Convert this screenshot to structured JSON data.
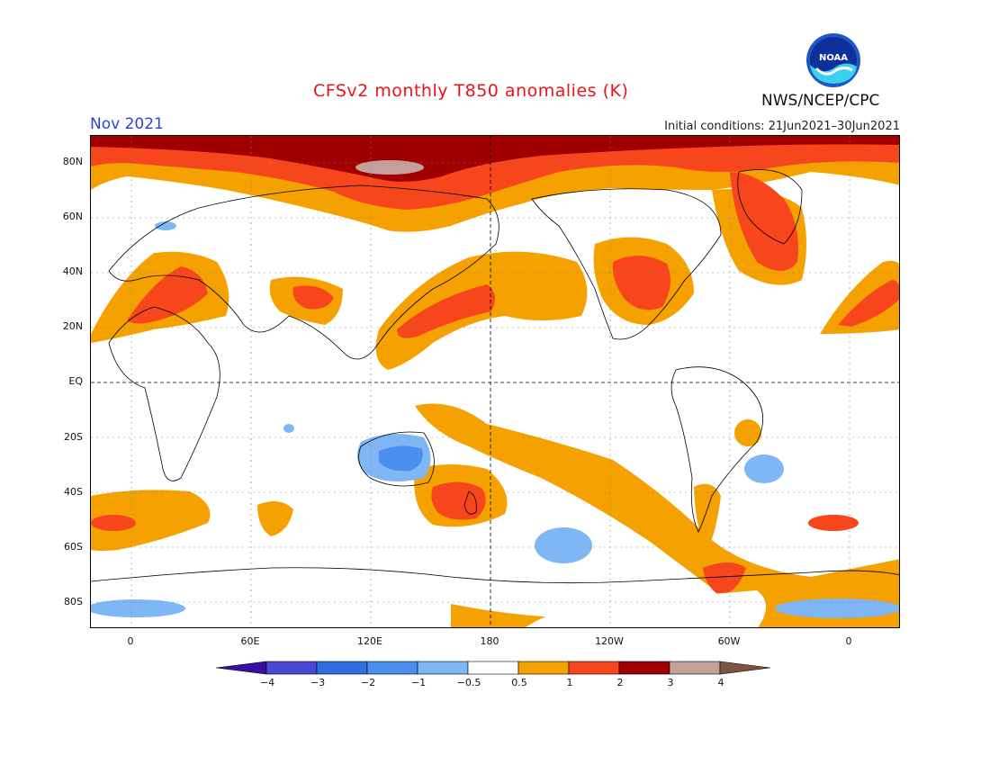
{
  "header": {
    "title": "CFSv2 monthly T850 anomalies (K)",
    "month": "Nov 2021",
    "initial_conditions": "Initial conditions: 21Jun2021–30Jun2021",
    "agency": "NWS/NCEP/CPC",
    "logo_text": "NOAA"
  },
  "axes": {
    "y_labels": [
      "80N",
      "60N",
      "40N",
      "20N",
      "EQ",
      "20S",
      "40S",
      "60S",
      "80S"
    ],
    "x_labels": [
      "0",
      "60E",
      "120E",
      "180",
      "120W",
      "60W",
      "0"
    ]
  },
  "colorbar": {
    "labels": [
      "−4",
      "−3",
      "−2",
      "−1",
      "−0.5",
      "0.5",
      "1",
      "2",
      "3",
      "4"
    ],
    "colors": [
      "#3a0ea0",
      "#4a46d6",
      "#2e6ee0",
      "#4a8ff0",
      "#7fb6f6",
      "#ffffff",
      "#f5a100",
      "#f8461c",
      "#a00000",
      "#c4a09a",
      "#7a5540"
    ]
  },
  "colors": {
    "title": "#e8141a",
    "month": "#2a44d6",
    "warm_0_5_1": "#f5a100",
    "warm_1_2": "#f8461c",
    "warm_2_3": "#a00000",
    "warm_3_4": "#c4a09a",
    "cool_m0_5_m1": "#7fb6f6",
    "cool_m1_m2": "#4a8ff0"
  }
}
